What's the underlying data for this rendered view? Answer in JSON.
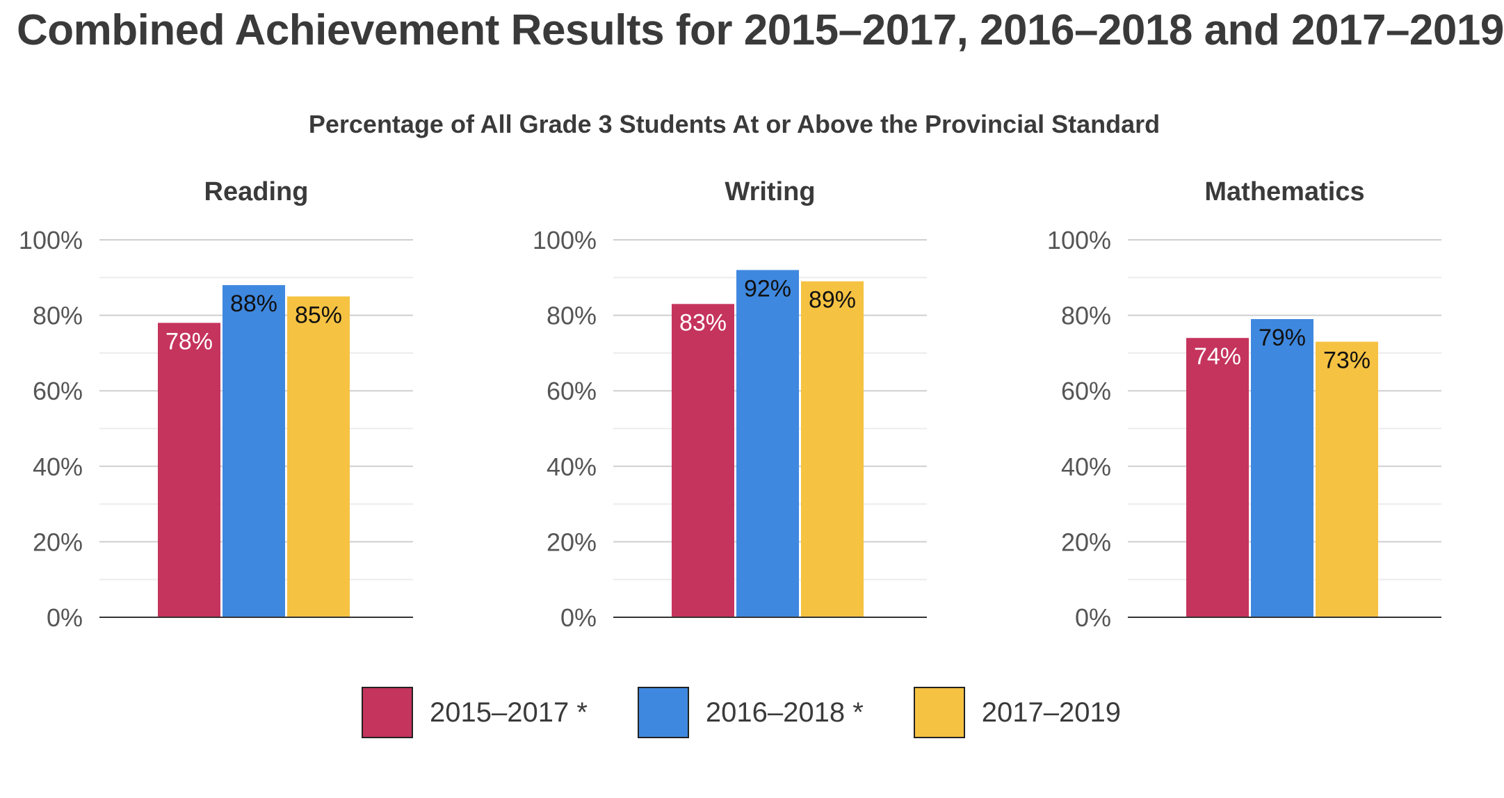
{
  "title": "Combined Achievement Results for 2015–2017, 2016–2018 and 2017–2019",
  "subtitle": "Percentage of All Grade 3 Students At or Above the Provincial Standard",
  "chart_data": {
    "type": "bar",
    "ylim": [
      0,
      100
    ],
    "y_ticks": [
      "0%",
      "20%",
      "40%",
      "60%",
      "80%",
      "100%"
    ],
    "grid": true,
    "legend_position": "bottom",
    "series": [
      {
        "name": "2015–2017 *",
        "color": "#c5345d"
      },
      {
        "name": "2016–2018 *",
        "color": "#3f88df"
      },
      {
        "name": "2017–2019",
        "color": "#f5c242"
      }
    ],
    "panels": [
      {
        "title": "Reading",
        "values": [
          78,
          88,
          85
        ],
        "labels": [
          "78%",
          "88%",
          "85%"
        ]
      },
      {
        "title": "Writing",
        "values": [
          83,
          92,
          89
        ],
        "labels": [
          "83%",
          "92%",
          "89%"
        ]
      },
      {
        "title": "Mathematics",
        "values": [
          74,
          79,
          73
        ],
        "labels": [
          "74%",
          "79%",
          "73%"
        ]
      }
    ]
  },
  "colors": {
    "label_on_red": "#ffffff",
    "label_default": "#111111",
    "grid_major": "#cfcfcf",
    "grid_minor": "#ececec",
    "axis": "#333333",
    "tick_text": "#555555"
  }
}
